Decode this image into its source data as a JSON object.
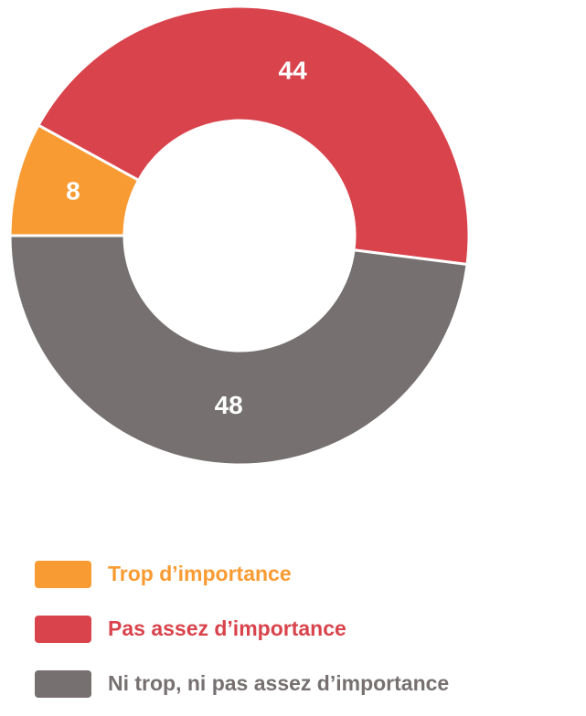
{
  "chart_data": {
    "type": "donut",
    "categories": [
      "Trop d’importance",
      "Pas assez d’importance",
      "Ni trop, ni pas assez d’importance"
    ],
    "values": [
      8,
      44,
      48
    ],
    "colors": [
      "#f99b33",
      "#d9434b",
      "#767170"
    ]
  }
}
